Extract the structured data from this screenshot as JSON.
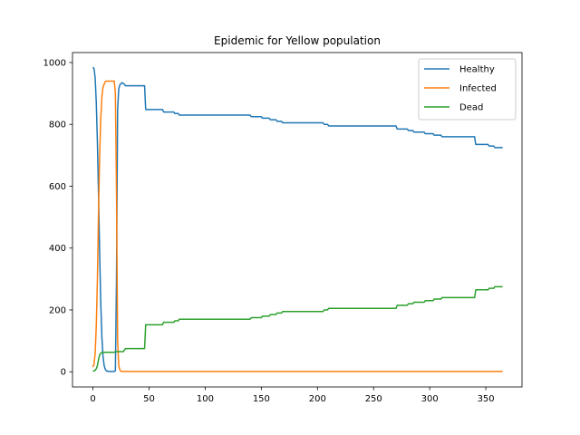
{
  "chart_data": {
    "type": "line",
    "title": "Epidemic for Yellow population",
    "xlabel": "",
    "ylabel": "",
    "xlim": [
      -18.2,
      382.2
    ],
    "ylim": [
      -49.1,
      1032.2
    ],
    "xticks": [
      0,
      50,
      100,
      150,
      200,
      250,
      300,
      350
    ],
    "yticks": [
      0,
      200,
      400,
      600,
      800,
      1000
    ],
    "grid": false,
    "legend": "top-right",
    "series": [
      {
        "name": "Healthy",
        "color": "#1f77b4",
        "points": [
          [
            0,
            985
          ],
          [
            1,
            980
          ],
          [
            2,
            950
          ],
          [
            3,
            870
          ],
          [
            4,
            740
          ],
          [
            5,
            570
          ],
          [
            6,
            380
          ],
          [
            7,
            220
          ],
          [
            8,
            110
          ],
          [
            9,
            50
          ],
          [
            10,
            20
          ],
          [
            11,
            8
          ],
          [
            12,
            3
          ],
          [
            14,
            1
          ],
          [
            19,
            1
          ],
          [
            20,
            3
          ],
          [
            21,
            300
          ],
          [
            22,
            850
          ],
          [
            23,
            915
          ],
          [
            24,
            928
          ],
          [
            26,
            935
          ],
          [
            27,
            932
          ],
          [
            28,
            930
          ],
          [
            29,
            925
          ],
          [
            46,
            925
          ],
          [
            47,
            848
          ],
          [
            62,
            848
          ],
          [
            63,
            840
          ],
          [
            72,
            840
          ],
          [
            73,
            835
          ],
          [
            76,
            835
          ],
          [
            77,
            830
          ],
          [
            140,
            830
          ],
          [
            141,
            825
          ],
          [
            150,
            825
          ],
          [
            151,
            820
          ],
          [
            157,
            820
          ],
          [
            158,
            815
          ],
          [
            163,
            815
          ],
          [
            164,
            810
          ],
          [
            168,
            810
          ],
          [
            169,
            805
          ],
          [
            205,
            805
          ],
          [
            206,
            800
          ],
          [
            209,
            800
          ],
          [
            210,
            795
          ],
          [
            270,
            795
          ],
          [
            271,
            785
          ],
          [
            280,
            785
          ],
          [
            281,
            780
          ],
          [
            285,
            780
          ],
          [
            286,
            775
          ],
          [
            295,
            775
          ],
          [
            296,
            770
          ],
          [
            303,
            770
          ],
          [
            304,
            765
          ],
          [
            310,
            765
          ],
          [
            311,
            760
          ],
          [
            340,
            760
          ],
          [
            341,
            735
          ],
          [
            352,
            735
          ],
          [
            353,
            730
          ],
          [
            357,
            730
          ],
          [
            358,
            725
          ],
          [
            365,
            725
          ]
        ]
      },
      {
        "name": "Infected",
        "color": "#ff7f0e",
        "points": [
          [
            0,
            15
          ],
          [
            1,
            25
          ],
          [
            2,
            60
          ],
          [
            3,
            150
          ],
          [
            4,
            300
          ],
          [
            5,
            520
          ],
          [
            6,
            700
          ],
          [
            7,
            820
          ],
          [
            8,
            890
          ],
          [
            9,
            920
          ],
          [
            10,
            930
          ],
          [
            11,
            938
          ],
          [
            12,
            940
          ],
          [
            19,
            940
          ],
          [
            20,
            900
          ],
          [
            21,
            580
          ],
          [
            22,
            100
          ],
          [
            23,
            20
          ],
          [
            24,
            6
          ],
          [
            25,
            2
          ],
          [
            26,
            1
          ],
          [
            365,
            1
          ]
        ]
      },
      {
        "name": "Dead",
        "color": "#2ca02c",
        "points": [
          [
            0,
            2
          ],
          [
            1,
            3
          ],
          [
            2,
            5
          ],
          [
            3,
            10
          ],
          [
            4,
            20
          ],
          [
            5,
            40
          ],
          [
            6,
            55
          ],
          [
            7,
            60
          ],
          [
            8,
            62
          ],
          [
            9,
            63
          ],
          [
            19,
            63
          ],
          [
            20,
            65
          ],
          [
            27,
            65
          ],
          [
            28,
            70
          ],
          [
            29,
            75
          ],
          [
            46,
            75
          ],
          [
            47,
            152
          ],
          [
            62,
            152
          ],
          [
            63,
            160
          ],
          [
            72,
            160
          ],
          [
            73,
            165
          ],
          [
            76,
            165
          ],
          [
            77,
            170
          ],
          [
            140,
            170
          ],
          [
            141,
            175
          ],
          [
            150,
            175
          ],
          [
            151,
            180
          ],
          [
            157,
            180
          ],
          [
            158,
            185
          ],
          [
            163,
            185
          ],
          [
            164,
            190
          ],
          [
            168,
            190
          ],
          [
            169,
            195
          ],
          [
            205,
            195
          ],
          [
            206,
            200
          ],
          [
            209,
            200
          ],
          [
            210,
            205
          ],
          [
            270,
            205
          ],
          [
            271,
            215
          ],
          [
            280,
            215
          ],
          [
            281,
            220
          ],
          [
            285,
            220
          ],
          [
            286,
            225
          ],
          [
            295,
            225
          ],
          [
            296,
            230
          ],
          [
            303,
            230
          ],
          [
            304,
            235
          ],
          [
            310,
            235
          ],
          [
            311,
            240
          ],
          [
            340,
            240
          ],
          [
            341,
            265
          ],
          [
            352,
            265
          ],
          [
            353,
            270
          ],
          [
            357,
            270
          ],
          [
            358,
            275
          ],
          [
            365,
            275
          ]
        ]
      }
    ]
  }
}
